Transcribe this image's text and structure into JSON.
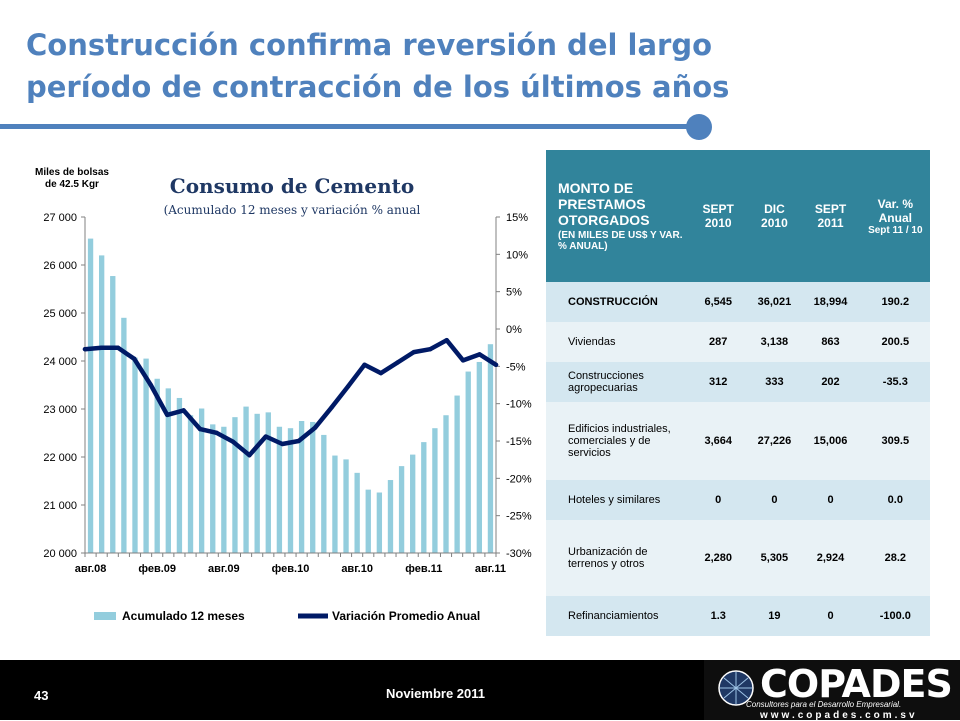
{
  "slide": {
    "title_line1": "Construcción confirma reversión del largo",
    "title_line2": "período de contracción de los últimos años",
    "page_number": "43",
    "date": "Noviembre 2011",
    "accent_color": "#4f81bd"
  },
  "logo": {
    "name": "COPADES",
    "tagline": "Consultores para el Desarrollo Empresarial.",
    "website": "www.copades.com.sv"
  },
  "chart_data": {
    "type": "bar",
    "title": "Consumo de Cemento",
    "subtitle": "(Acumulado 12 meses y variación % anual",
    "ylabel_left": "Miles de bolsas de 42.5 Kgr",
    "ylabel_right": "%",
    "ylim_left": [
      20000,
      27000
    ],
    "ylim_right": [
      -30,
      15
    ],
    "yticks_left": [
      "20 000",
      "21 000",
      "22 000",
      "23 000",
      "24 000",
      "25 000",
      "26 000",
      "27 000"
    ],
    "yticks_right": [
      "-30%",
      "-25%",
      "-20%",
      "-15%",
      "-10%",
      "-5%",
      "0%",
      "5%",
      "10%",
      "15%"
    ],
    "x_ticks": [
      "авг.08",
      "фев.09",
      "авг.09",
      "фев.10",
      "авг.10",
      "фев.11",
      "авг.11"
    ],
    "grid": false,
    "legend_position": "bottom",
    "series": [
      {
        "name": "Acumulado 12 meses",
        "type": "bar",
        "axis": "left",
        "color": "#93cddd",
        "values": [
          26550,
          26200,
          25770,
          24900,
          24070,
          24050,
          23630,
          23430,
          23230,
          22870,
          23010,
          22680,
          22630,
          22830,
          23050,
          22900,
          22930,
          22630,
          22600,
          22750,
          22730,
          22460,
          22030,
          21950,
          21670,
          21320,
          21260,
          21520,
          21810,
          22050,
          22310,
          22600,
          22870,
          23280,
          23780,
          23980,
          24350
        ]
      },
      {
        "name": "Variación Promedio Anual",
        "type": "line",
        "axis": "right",
        "color": "#001a66",
        "values": [
          -2.7,
          -2.5,
          -2.5,
          -4.0,
          -7.5,
          -11.5,
          -10.9,
          -13.4,
          -13.9,
          -15.1,
          -16.9,
          -14.4,
          -15.4,
          -15.0,
          -13.2,
          -10.5,
          -7.7,
          -4.8,
          -5.9,
          -4.5,
          -3.1,
          -2.7,
          -1.5,
          -4.2,
          -3.4,
          -4.8
        ]
      }
    ]
  },
  "table": {
    "header": {
      "main": "MONTO DE PRESTAMOS OTORGADOS",
      "main_sub": "(EN MILES DE US$ Y VAR. % ANUAL)",
      "col1": "SEPT 2010",
      "col2": "DIC 2010",
      "col3": "SEPT 2011",
      "col4": "Var. % Anual",
      "col4_sub": "Sept 11 / 10"
    },
    "rows": [
      {
        "label": "CONSTRUCCIÓN",
        "v1": "6,545",
        "v2": "36,021",
        "v3": "18,994",
        "v4": "190.2"
      },
      {
        "label": "Viviendas",
        "v1": "287",
        "v2": "3,138",
        "v3": "863",
        "v4": "200.5"
      },
      {
        "label": "Construcciones agropecuarias",
        "v1": "312",
        "v2": "333",
        "v3": "202",
        "v4": "-35.3"
      },
      {
        "label": "Edificios industriales, comerciales y de servicios",
        "v1": "3,664",
        "v2": "27,226",
        "v3": "15,006",
        "v4": "309.5"
      },
      {
        "label": "Hoteles y similares",
        "v1": "0",
        "v2": "0",
        "v3": "0",
        "v4": "0.0"
      },
      {
        "label": "Urbanización de terrenos y otros",
        "v1": "2,280",
        "v2": "5,305",
        "v3": "2,924",
        "v4": "28.2"
      },
      {
        "label": "Refinanciamientos",
        "v1": "1.3",
        "v2": "19",
        "v3": "0",
        "v4": "-100.0"
      }
    ]
  }
}
